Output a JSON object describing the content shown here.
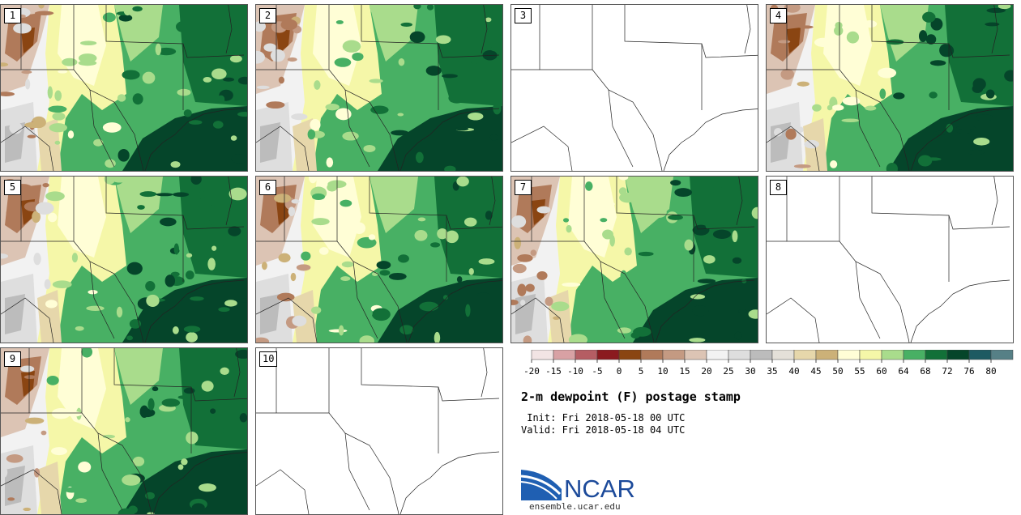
{
  "panels": [
    {
      "label": "1",
      "has_data": true
    },
    {
      "label": "2",
      "has_data": true
    },
    {
      "label": "3",
      "has_data": false
    },
    {
      "label": "4",
      "has_data": true
    },
    {
      "label": "5",
      "has_data": true
    },
    {
      "label": "6",
      "has_data": true
    },
    {
      "label": "7",
      "has_data": true
    },
    {
      "label": "8",
      "has_data": false
    },
    {
      "label": "9",
      "has_data": true
    },
    {
      "label": "10",
      "has_data": false
    }
  ],
  "colorbar": {
    "ticks": [
      "-20",
      "-15",
      "-10",
      "-5",
      "0",
      "5",
      "10",
      "15",
      "20",
      "25",
      "30",
      "35",
      "40",
      "45",
      "50",
      "55",
      "60",
      "64",
      "68",
      "72",
      "76",
      "80"
    ],
    "colors": [
      "#f2e4e4",
      "#d8a1a4",
      "#b55d63",
      "#8b1a1f",
      "#8a4512",
      "#b07a5a",
      "#c49a82",
      "#dcc4b4",
      "#f2f2f2",
      "#dedede",
      "#bcbcbc",
      "#e4e0d8",
      "#e6d7ab",
      "#ccb178",
      "#fffed6",
      "#f5f7a8",
      "#a9dc8c",
      "#48b064",
      "#127038",
      "#05452a",
      "#1d5a62",
      "#568086"
    ]
  },
  "map_colors": {
    "dry": [
      "#8a4512",
      "#b07a5a",
      "#c49a82",
      "#dcc4b4"
    ],
    "mid": [
      "#f2f2f2",
      "#dedede",
      "#bcbcbc",
      "#e6d7ab",
      "#ccb178"
    ],
    "wet": [
      "#fffed6",
      "#f5f7a8",
      "#a9dc8c",
      "#48b064",
      "#127038",
      "#05452a"
    ]
  },
  "title": "2-m dewpoint (F) postage stamp",
  "init": " Init: Fri 2018-05-18 00 UTC",
  "valid": "Valid: Fri 2018-05-18 04 UTC",
  "logo_text": "NCAR",
  "site": "ensemble.ucar.edu"
}
